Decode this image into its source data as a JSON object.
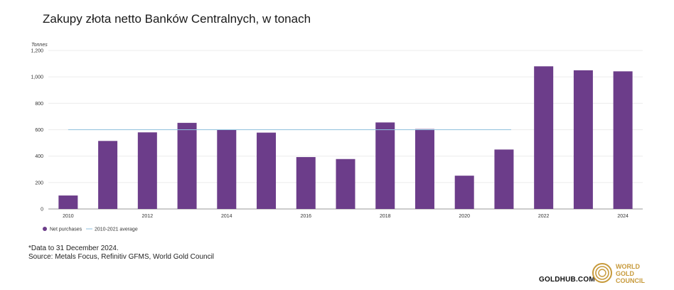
{
  "title": "Zakupy złota netto Banków Centralnych, w tonach",
  "footnote": {
    "line1": "*Data to 31 December 2024.",
    "line2": "Source: Metals Focus, Refinitiv GFMS, World Gold Council"
  },
  "branding": {
    "url": "GOLDHUB.COM",
    "logo_line1": "WORLD",
    "logo_line2": "GOLD",
    "logo_line3": "COUNCIL",
    "logo_color": "#c79a3b"
  },
  "chart_data": {
    "type": "bar",
    "title": "",
    "ylabel": "Tonnes",
    "xlabel": "",
    "ylim": [
      0,
      1200
    ],
    "yticks": [
      0,
      200,
      400,
      600,
      800,
      1000,
      1200
    ],
    "ytick_labels": [
      "0",
      "200",
      "400",
      "600",
      "800",
      "1,000",
      "1,200"
    ],
    "categories": [
      "2010",
      "2011",
      "2012",
      "2013",
      "2014",
      "2015",
      "2016",
      "2017",
      "2018",
      "2019",
      "2020",
      "2021",
      "2022",
      "2023",
      "2024"
    ],
    "xtick_labels": [
      "2010",
      "",
      "2012",
      "",
      "2014",
      "",
      "2016",
      "",
      "2018",
      "",
      "2020",
      "",
      "2022",
      "",
      "2024"
    ],
    "series": [
      {
        "name": "Net purchases",
        "color": "#6c3d8a",
        "values": [
          102,
          515,
          580,
          652,
          600,
          578,
          393,
          378,
          655,
          605,
          252,
          450,
          1080,
          1050,
          1042
        ]
      }
    ],
    "reference_line": {
      "name": "2010-2021 average",
      "color": "#8fc1dd",
      "value": 600,
      "from": "2010",
      "to": "2021"
    },
    "grid": true,
    "legend": "bottom-left"
  }
}
